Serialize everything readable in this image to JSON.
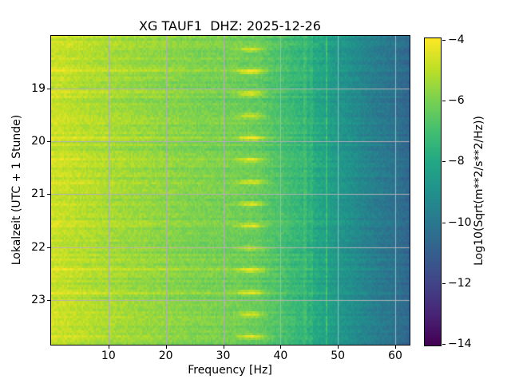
{
  "title": "XG TAUF1  DHZ: 2025-12-26",
  "x_axis": {
    "label": "Frequency [Hz]",
    "tick_labels": [
      "10",
      "20",
      "30",
      "40",
      "50",
      "60"
    ],
    "tick_values": [
      10,
      20,
      30,
      40,
      50,
      60
    ]
  },
  "y_axis": {
    "label": "Lokalzeit (UTC + 1 Stunde)",
    "tick_labels": [
      "19",
      "20",
      "21",
      "22",
      "23"
    ],
    "tick_values": [
      19,
      20,
      21,
      22,
      23
    ]
  },
  "colorbar": {
    "label": "Log10(Sqrt(m**2/s**2/Hz))",
    "tick_labels": [
      "−4",
      "−6",
      "−8",
      "−10",
      "−12",
      "−14"
    ],
    "tick_values": [
      -4,
      -6,
      -8,
      -10,
      -12,
      -14
    ],
    "range": [
      -14,
      -4
    ],
    "colormap": "viridis",
    "stops": [
      [
        0.0,
        "#440154"
      ],
      [
        0.1,
        "#482475"
      ],
      [
        0.2,
        "#414487"
      ],
      [
        0.3,
        "#355f8d"
      ],
      [
        0.4,
        "#2a788e"
      ],
      [
        0.5,
        "#21918c"
      ],
      [
        0.6,
        "#22a884"
      ],
      [
        0.7,
        "#44bf70"
      ],
      [
        0.8,
        "#7ad151"
      ],
      [
        0.9,
        "#bddf26"
      ],
      [
        1.0,
        "#fde725"
      ]
    ]
  },
  "chart_data": {
    "type": "heatmap",
    "subtype": "spectrogram",
    "title": "XG TAUF1  DHZ: 2025-12-26",
    "network": "XG",
    "station": "TAUF1",
    "channel": "DHZ",
    "date": "2025-12-26",
    "xlabel": "Frequency [Hz]",
    "ylabel": "Lokalzeit (UTC + 1 Stunde)",
    "value_label": "Log10(Sqrt(m**2/s**2/Hz))",
    "value_range": [
      -14,
      -4
    ],
    "x_range_hz": [
      0,
      62.5
    ],
    "time_range_hours": [
      18.01,
      23.84
    ],
    "grid": true,
    "grid_color": "#b0b0b4",
    "frequency_profile": [
      [
        0,
        -4.8
      ],
      [
        2,
        -4.9
      ],
      [
        5,
        -5.1
      ],
      [
        10,
        -5.35
      ],
      [
        15,
        -5.55
      ],
      [
        20,
        -5.75
      ],
      [
        25,
        -5.95
      ],
      [
        30,
        -6.1
      ],
      [
        33,
        -6.2
      ],
      [
        36,
        -6.35
      ],
      [
        40,
        -6.9
      ],
      [
        44,
        -7.5
      ],
      [
        48,
        -8.3
      ],
      [
        50,
        -8.7
      ],
      [
        53,
        -9.2
      ],
      [
        56,
        -9.7
      ],
      [
        59,
        -10.1
      ],
      [
        61,
        -10.4
      ],
      [
        62.5,
        -10.7
      ]
    ],
    "events": {
      "interval_minutes": 25,
      "first_event_local": "18:16",
      "count": 14,
      "center_frequency_hz": 34.9,
      "blob_sigma_hz": 1.6,
      "blob_boost": 1.8,
      "broadband_boost": 0.32
    },
    "narrowband_lines": [
      {
        "freq_hz": 48.1,
        "boost": 1.1
      },
      {
        "freq_hz": 44.3,
        "boost": 0.45
      },
      {
        "freq_hz": 45.4,
        "boost": 0.3
      }
    ],
    "noise": {
      "cell": 0.66,
      "row": 0.5
    }
  }
}
